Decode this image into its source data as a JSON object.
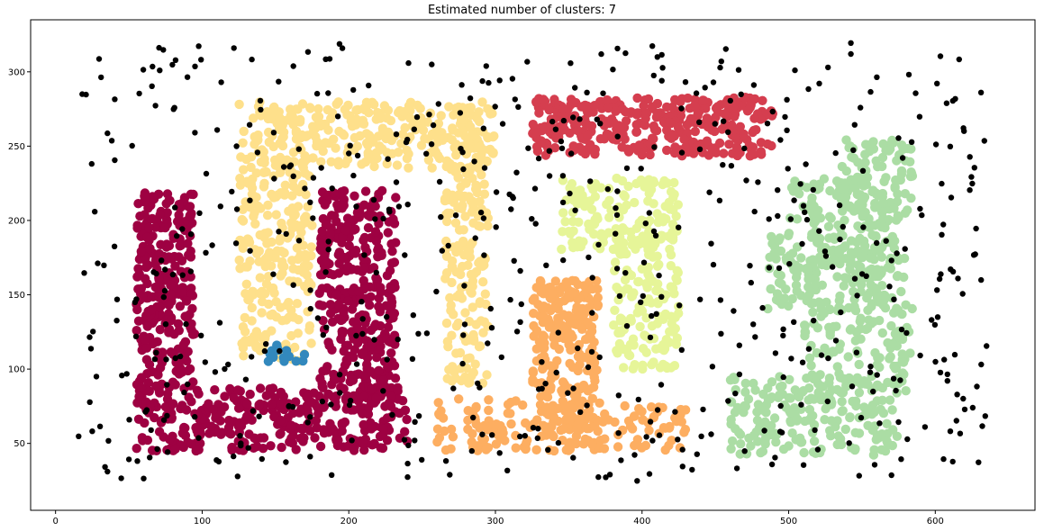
{
  "chart_data": {
    "type": "scatter",
    "title": "Estimated number of clusters: 7",
    "xlabel": "",
    "ylabel": "",
    "xlim": [
      -17,
      668
    ],
    "ylim": [
      5,
      335
    ],
    "xticks": [
      0,
      100,
      200,
      300,
      400,
      500,
      600
    ],
    "yticks": [
      50,
      100,
      150,
      200,
      250,
      300
    ],
    "grid": false,
    "legend": "none",
    "clusters": [
      {
        "color": "#9e0142",
        "rects": [
          [
            55,
            95,
            45,
            220
          ],
          [
            95,
            225,
            45,
            88
          ],
          [
            180,
            232,
            80,
            220
          ],
          [
            225,
            240,
            50,
            88
          ]
        ],
        "points": 950
      },
      {
        "color": "#fee08b",
        "rects": [
          [
            125,
            295,
            235,
            280
          ],
          [
            125,
            175,
            105,
            240
          ],
          [
            265,
            295,
            90,
            240
          ],
          [
            270,
            300,
            240,
            280
          ]
        ],
        "points": 700
      },
      {
        "color": "#3288bd",
        "rects": [
          [
            145,
            170,
            105,
            117
          ]
        ],
        "points": 14
      },
      {
        "color": "#d53e4f",
        "rects": [
          [
            325,
            490,
            243,
            283
          ]
        ],
        "points": 350
      },
      {
        "color": "#e6f598",
        "rects": [
          [
            345,
            425,
            180,
            230
          ],
          [
            380,
            425,
            100,
            190
          ]
        ],
        "points": 280
      },
      {
        "color": "#fdae61",
        "rects": [
          [
            325,
            370,
            80,
            160
          ],
          [
            330,
            370,
            45,
            160
          ],
          [
            260,
            430,
            45,
            80
          ]
        ],
        "points": 420
      },
      {
        "color": "#abdda4",
        "rects": [
          [
            535,
            585,
            200,
            255
          ],
          [
            500,
            575,
            160,
            230
          ],
          [
            485,
            580,
            140,
            190
          ],
          [
            510,
            585,
            85,
            145
          ],
          [
            460,
            575,
            42,
            95
          ]
        ],
        "points": 700
      },
      {
        "color": "#000000",
        "noise": true,
        "points": 620
      }
    ]
  }
}
